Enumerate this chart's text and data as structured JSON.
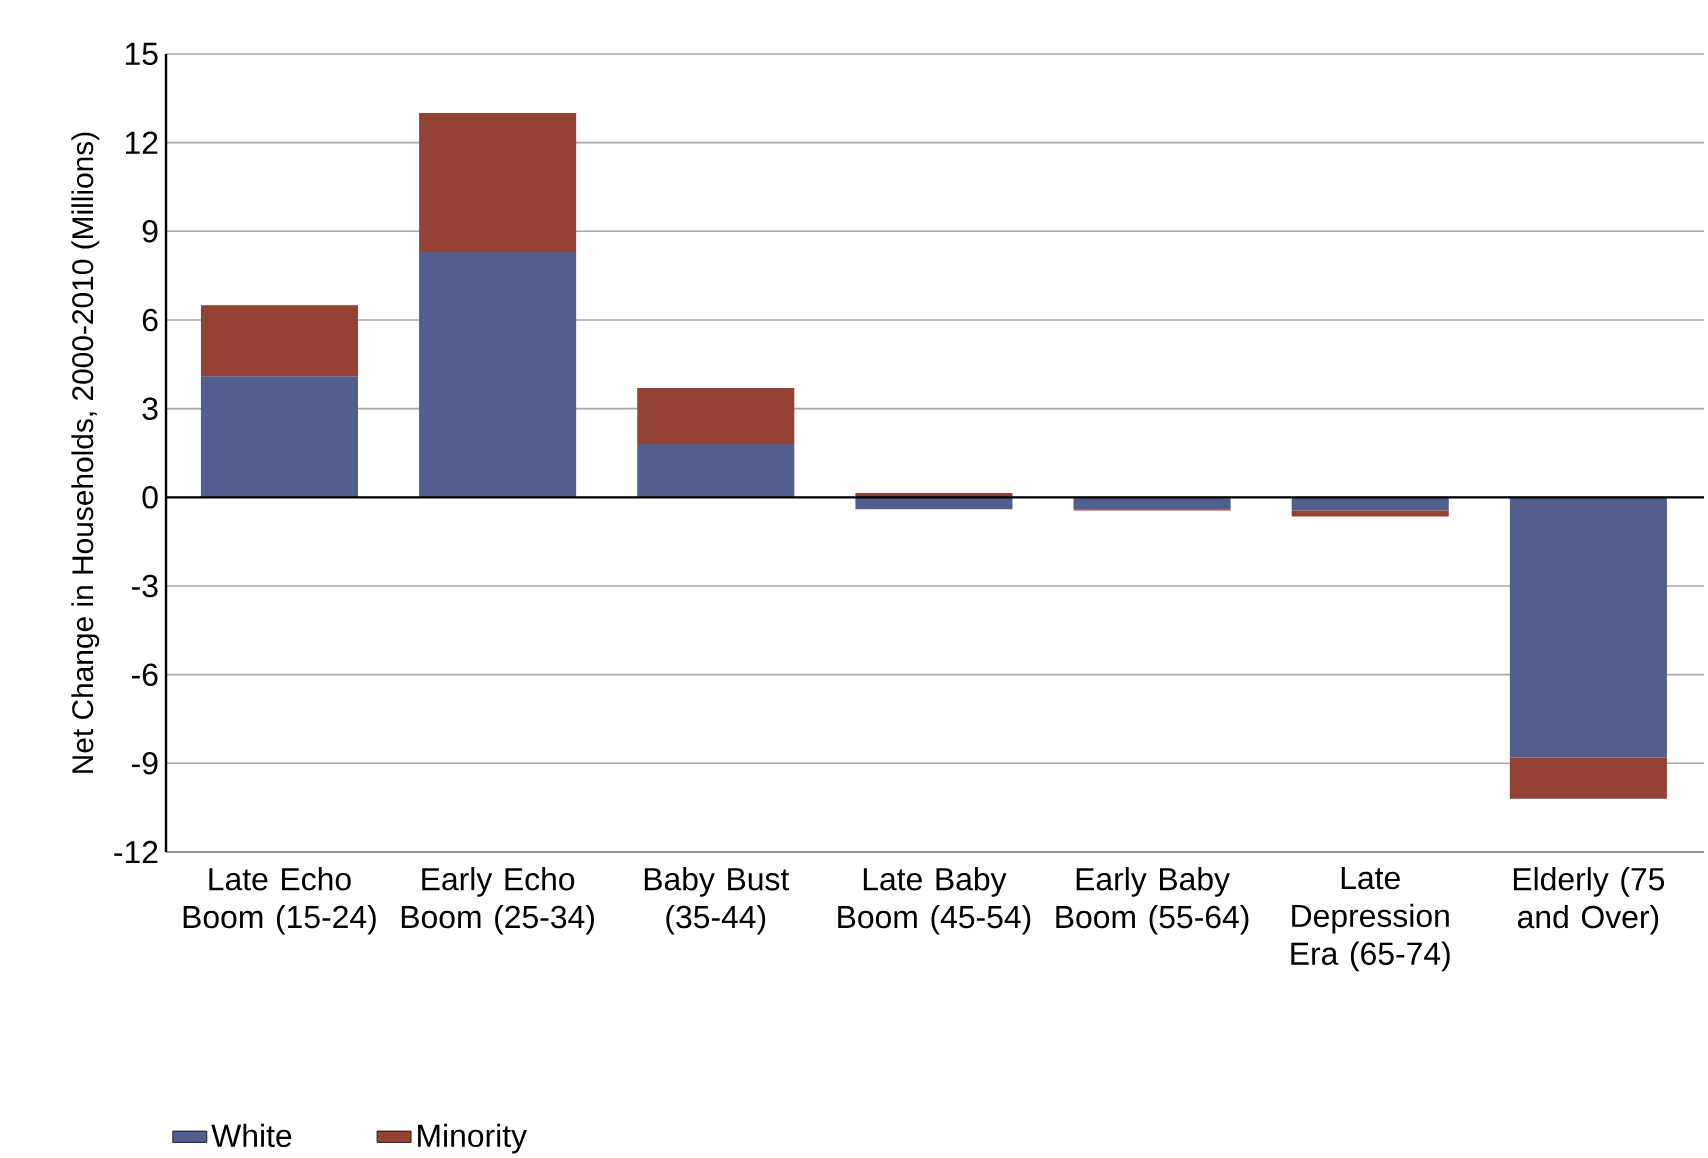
{
  "chart_data": {
    "type": "bar",
    "stacked": true,
    "ylabel": "Net Change in Households, 2000-2010 (Millions)",
    "categories": [
      "Late Echo Boom (15-24)",
      "Early Echo Boom (25-34)",
      "Baby Bust (35-44)",
      "Late Baby Boom (45-54)",
      "Early Baby Boom (55-64)",
      "Late Depression Era (65-74)",
      "Elderly (75 and Over)"
    ],
    "series": [
      {
        "name": "White",
        "color": "#525e8e",
        "values": [
          4.1,
          8.3,
          1.8,
          -0.4,
          -0.4,
          -0.45,
          -8.8
        ]
      },
      {
        "name": "Minority",
        "color": "#944235",
        "values": [
          2.4,
          4.7,
          1.9,
          0.15,
          -0.05,
          -0.2,
          -1.4
        ]
      }
    ],
    "ylim": [
      -12,
      15
    ],
    "yticks": [
      -12,
      -9,
      -6,
      -3,
      0,
      3,
      6,
      9,
      12,
      15
    ],
    "grid": "y",
    "legend": "bottom"
  }
}
